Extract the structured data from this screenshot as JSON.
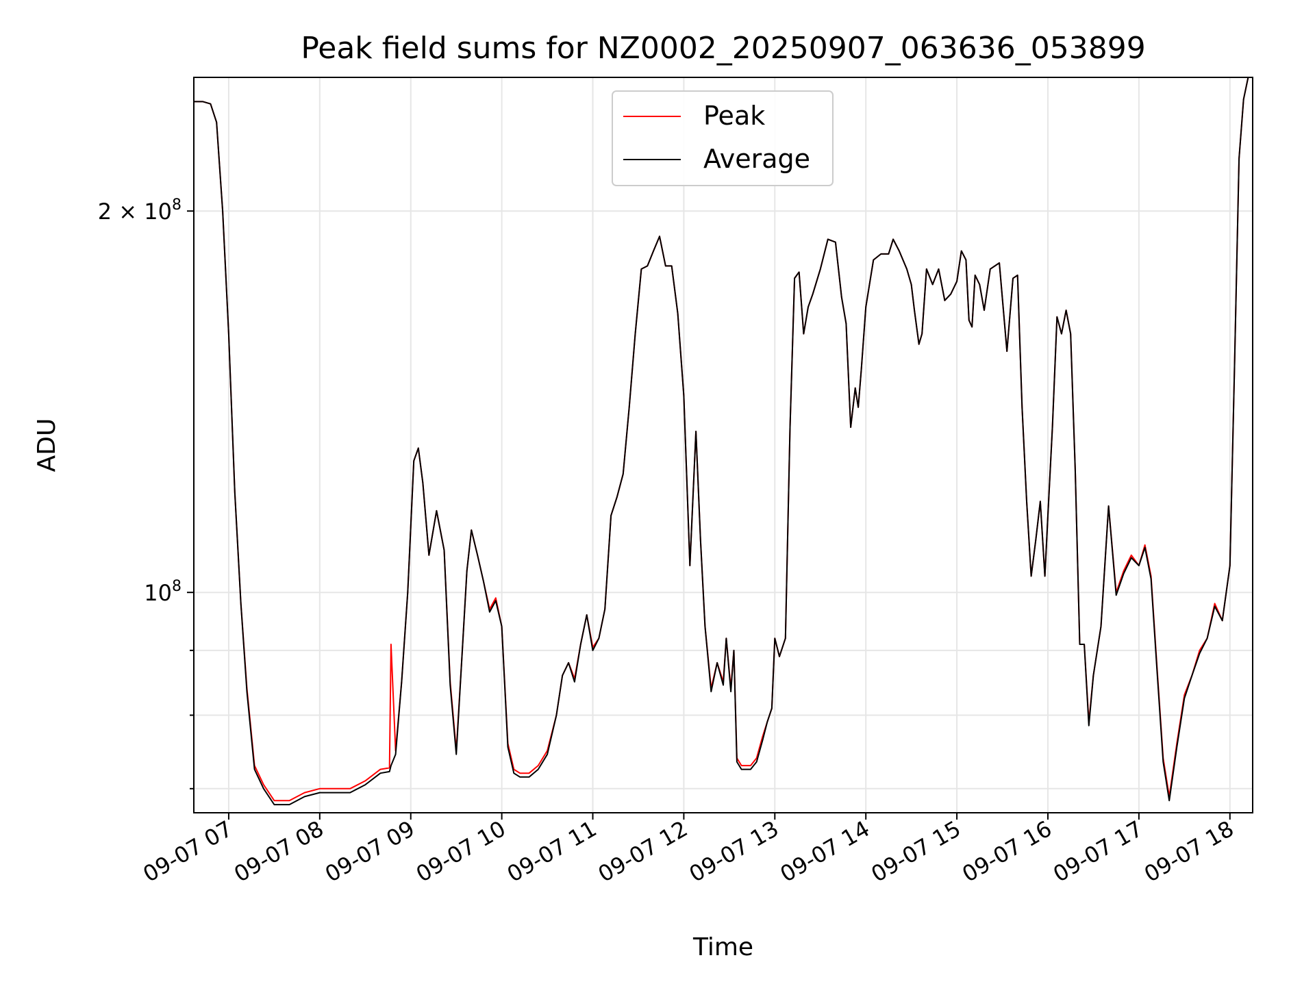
{
  "chart_data": {
    "type": "line",
    "title": "Peak field sums for NZ0002_20250907_063636_053899",
    "xlabel": "Time",
    "ylabel": "ADU",
    "y_scale": "log",
    "ylim": [
      67000000,
      255000000
    ],
    "xlim": [
      "2025-09-07 06:37",
      "2025-09-07 18:15"
    ],
    "grid": true,
    "legend_position": "upper center",
    "x_ticks": [
      "09-07 07",
      "09-07 08",
      "09-07 09",
      "09-07 10",
      "09-07 11",
      "09-07 12",
      "09-07 13",
      "09-07 14",
      "09-07 15",
      "09-07 16",
      "09-07 17",
      "09-07 18"
    ],
    "y_major_ticks": [
      {
        "value": 100000000,
        "base": "10",
        "exp": "8",
        "mult": ""
      },
      {
        "value": 200000000,
        "base": "10",
        "exp": "8",
        "mult": "2 × "
      }
    ],
    "y_minor_ticks": [
      70000000,
      80000000,
      90000000
    ],
    "x": [
      "06:37",
      "06:43",
      "06:48",
      "06:52",
      "06:56",
      "07:00",
      "07:04",
      "07:08",
      "07:12",
      "07:17",
      "07:23",
      "07:30",
      "07:40",
      "07:50",
      "08:00",
      "08:10",
      "08:20",
      "08:30",
      "08:40",
      "08:46",
      "08:47",
      "08:50",
      "08:54",
      "08:58",
      "09:02",
      "09:05",
      "09:08",
      "09:12",
      "09:17",
      "09:22",
      "09:26",
      "09:30",
      "09:34",
      "09:37",
      "09:40",
      "09:44",
      "09:48",
      "09:52",
      "09:56",
      "10:00",
      "10:04",
      "10:08",
      "10:12",
      "10:18",
      "10:24",
      "10:30",
      "10:36",
      "10:40",
      "10:44",
      "10:48",
      "10:52",
      "10:56",
      "11:00",
      "11:04",
      "11:08",
      "11:12",
      "11:16",
      "11:20",
      "11:24",
      "11:28",
      "11:32",
      "11:36",
      "11:40",
      "11:44",
      "11:48",
      "11:52",
      "11:56",
      "12:00",
      "12:04",
      "12:08",
      "12:11",
      "12:14",
      "12:18",
      "12:22",
      "12:26",
      "12:28",
      "12:31",
      "12:33",
      "12:35",
      "12:38",
      "12:40",
      "12:44",
      "12:48",
      "12:52",
      "12:55",
      "12:58",
      "13:00",
      "13:03",
      "13:07",
      "13:10",
      "13:13",
      "13:16",
      "13:19",
      "13:22",
      "13:25",
      "13:30",
      "13:35",
      "13:40",
      "13:44",
      "13:47",
      "13:50",
      "13:53",
      "13:55",
      "13:57",
      "14:00",
      "14:05",
      "14:10",
      "14:15",
      "14:18",
      "14:22",
      "14:27",
      "14:30",
      "14:32",
      "14:35",
      "14:37",
      "14:40",
      "14:44",
      "14:48",
      "14:52",
      "14:56",
      "15:00",
      "15:03",
      "15:06",
      "15:08",
      "15:10",
      "15:12",
      "15:15",
      "15:18",
      "15:22",
      "15:28",
      "15:33",
      "15:37",
      "15:40",
      "15:43",
      "15:46",
      "15:49",
      "15:52",
      "15:55",
      "15:58",
      "16:00",
      "16:03",
      "16:06",
      "16:09",
      "16:12",
      "16:15",
      "16:18",
      "16:21",
      "16:24",
      "16:27",
      "16:30",
      "16:35",
      "16:40",
      "16:45",
      "16:50",
      "16:55",
      "17:00",
      "17:04",
      "17:08",
      "17:12",
      "17:16",
      "17:20",
      "17:25",
      "17:30",
      "17:35",
      "17:40",
      "17:45",
      "17:50",
      "17:55",
      "18:00",
      "18:03",
      "18:06",
      "18:09",
      "18:12",
      "18:14"
    ],
    "series": [
      {
        "name": "Peak",
        "color": "#ff0000",
        "values": [
          244000000,
          244000000,
          243000000,
          235000000,
          200000000,
          160000000,
          120000000,
          98000000,
          84000000,
          73000000,
          70500000,
          68500000,
          68500000,
          69500000,
          70000000,
          70000000,
          70000000,
          71000000,
          72500000,
          72700000,
          91000000,
          75000000,
          85000000,
          100000000,
          127000000,
          130000000,
          122000000,
          107000000,
          116000000,
          108000000,
          85000000,
          75000000,
          90000000,
          104000000,
          112000000,
          107000000,
          102000000,
          97000000,
          99000000,
          94000000,
          76000000,
          72500000,
          72000000,
          72000000,
          73000000,
          75000000,
          80000000,
          86000000,
          88000000,
          85500000,
          91000000,
          96000000,
          90500000,
          92000000,
          97000000,
          115000000,
          119000000,
          124000000,
          140000000,
          160000000,
          180000000,
          181000000,
          186000000,
          191000000,
          181000000,
          181000000,
          166000000,
          143000000,
          105000000,
          134000000,
          110000000,
          94000000,
          84000000,
          88000000,
          85000000,
          92000000,
          84000000,
          90000000,
          74000000,
          73000000,
          73000000,
          73000000,
          74000000,
          77000000,
          79000000,
          81000000,
          92000000,
          89000000,
          92000000,
          135000000,
          177000000,
          179000000,
          160000000,
          168000000,
          172000000,
          180000000,
          190000000,
          189000000,
          171000000,
          163000000,
          135000000,
          145000000,
          140000000,
          150000000,
          168000000,
          183000000,
          185000000,
          185000000,
          190000000,
          186000000,
          180000000,
          175000000,
          167000000,
          157000000,
          160000000,
          180000000,
          175000000,
          180000000,
          170000000,
          172000000,
          176000000,
          186000000,
          183000000,
          164000000,
          162000000,
          178000000,
          175000000,
          167000000,
          180000000,
          182000000,
          155000000,
          177000000,
          178000000,
          140000000,
          118000000,
          103000000,
          110000000,
          118000000,
          103000000,
          115000000,
          135000000,
          165000000,
          160000000,
          167000000,
          160000000,
          125000000,
          91000000,
          91000000,
          79000000,
          86000000,
          94000000,
          117000000,
          100000000,
          104000000,
          107000000,
          105000000,
          109000000,
          103000000,
          87000000,
          74000000,
          69000000,
          76000000,
          83000000,
          86000000,
          90000000,
          92000000,
          98000000,
          95000000,
          105000000,
          150000000,
          220000000,
          245000000,
          255000000,
          255000000
        ]
      },
      {
        "name": "Average",
        "color": "#000000",
        "values": [
          244000000,
          244000000,
          243000000,
          235000000,
          200000000,
          160000000,
          120000000,
          98000000,
          83500000,
          72500000,
          70000000,
          68000000,
          68000000,
          69000000,
          69500000,
          69500000,
          69500000,
          70500000,
          72000000,
          72200000,
          73000000,
          74500000,
          85000000,
          100000000,
          127000000,
          130000000,
          122000000,
          107000000,
          116000000,
          108000000,
          84500000,
          74500000,
          90000000,
          104000000,
          112000000,
          107000000,
          102000000,
          96500000,
          98500000,
          94000000,
          75500000,
          72000000,
          71500000,
          71500000,
          72500000,
          74500000,
          80000000,
          86000000,
          88000000,
          85000000,
          91000000,
          96000000,
          90000000,
          92000000,
          97000000,
          115000000,
          119000000,
          124000000,
          140000000,
          160000000,
          180000000,
          181000000,
          186000000,
          191000000,
          181000000,
          181000000,
          166000000,
          143000000,
          105000000,
          134000000,
          110000000,
          94000000,
          83500000,
          88000000,
          84500000,
          92000000,
          83500000,
          90000000,
          73500000,
          72500000,
          72500000,
          72500000,
          73500000,
          76500000,
          79000000,
          81000000,
          92000000,
          89000000,
          92000000,
          135000000,
          177000000,
          179000000,
          160000000,
          168000000,
          172000000,
          180000000,
          190000000,
          189000000,
          171000000,
          163000000,
          135000000,
          145000000,
          140000000,
          150000000,
          168000000,
          183000000,
          185000000,
          185000000,
          190000000,
          186000000,
          180000000,
          175000000,
          167000000,
          157000000,
          160000000,
          180000000,
          175000000,
          180000000,
          170000000,
          172000000,
          176000000,
          186000000,
          183000000,
          164000000,
          162000000,
          178000000,
          175000000,
          167000000,
          180000000,
          182000000,
          155000000,
          177000000,
          178000000,
          140000000,
          118000000,
          103000000,
          110000000,
          118000000,
          103000000,
          115000000,
          135000000,
          165000000,
          160000000,
          167000000,
          160000000,
          125000000,
          91000000,
          91000000,
          78500000,
          86000000,
          94000000,
          117000000,
          99500000,
          103500000,
          106500000,
          105000000,
          108500000,
          102500000,
          86500000,
          73500000,
          68500000,
          75500000,
          82500000,
          86000000,
          89500000,
          92000000,
          97500000,
          95000000,
          105000000,
          150000000,
          220000000,
          245000000,
          255000000,
          255000000
        ]
      }
    ]
  }
}
